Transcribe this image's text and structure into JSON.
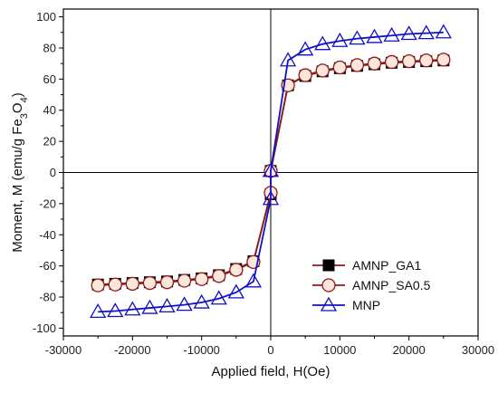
{
  "chart_data": {
    "type": "line",
    "xlabel": "Applied field, H(Oe)",
    "ylabel_main": "Moment, M (emu/g Fe",
    "ylabel_sub1": "3",
    "ylabel_mid": "O",
    "ylabel_sub2": "4",
    "ylabel_end": ")",
    "xlim": [
      -30000,
      30000
    ],
    "ylim": [
      -105,
      105
    ],
    "x_ticks": [
      -30000,
      -20000,
      -10000,
      0,
      10000,
      20000,
      30000
    ],
    "y_ticks": [
      -100,
      -80,
      -60,
      -40,
      -20,
      0,
      20,
      40,
      60,
      80,
      100
    ],
    "legend_position": "lower-right",
    "series": [
      {
        "name": "AMNP_GA1",
        "color": "#8B1A1A",
        "marker": "square",
        "marker_color": "#000000",
        "x": [
          -25000,
          -22500,
          -20000,
          -17500,
          -15000,
          -12500,
          -10000,
          -7500,
          -5000,
          -2500,
          0,
          0,
          2500,
          5000,
          7500,
          10000,
          12500,
          15000,
          17500,
          20000,
          22500,
          25000
        ],
        "y": [
          -72,
          -71.5,
          -71,
          -70.5,
          -70,
          -69,
          -68,
          -66,
          -62,
          -57,
          -14,
          1,
          56,
          62,
          65,
          67,
          68.5,
          69.5,
          70.5,
          71,
          71.5,
          72
        ]
      },
      {
        "name": "AMNP_SA0.5",
        "color": "#8B1A1A",
        "marker": "circle",
        "marker_color": "#8B1A1A",
        "x": [
          -25000,
          -22500,
          -20000,
          -17500,
          -15000,
          -12500,
          -10000,
          -7500,
          -5000,
          -2500,
          0,
          0,
          2500,
          5000,
          7500,
          10000,
          12500,
          15000,
          17500,
          20000,
          22500,
          25000
        ],
        "y": [
          -72.5,
          -72,
          -71.5,
          -71,
          -70.5,
          -69.5,
          -68.5,
          -66.5,
          -62.5,
          -57.5,
          -13,
          1,
          56,
          62.5,
          65.5,
          67.5,
          69,
          70,
          71,
          71.5,
          72,
          72.5
        ]
      },
      {
        "name": "MNP",
        "color": "#1010C8",
        "marker": "triangle",
        "marker_color": "#1010C8",
        "x": [
          -25000,
          -22500,
          -20000,
          -17500,
          -15000,
          -12500,
          -10000,
          -7500,
          -5000,
          -2500,
          0,
          0,
          2500,
          5000,
          7500,
          10000,
          12500,
          15000,
          17500,
          20000,
          22500,
          25000
        ],
        "y": [
          -89.5,
          -89,
          -88,
          -87,
          -86,
          -85,
          -83.5,
          -81,
          -77,
          -70,
          -17,
          1,
          72,
          79,
          82.5,
          84.5,
          86,
          87,
          88,
          89,
          89.5,
          90
        ]
      }
    ]
  }
}
